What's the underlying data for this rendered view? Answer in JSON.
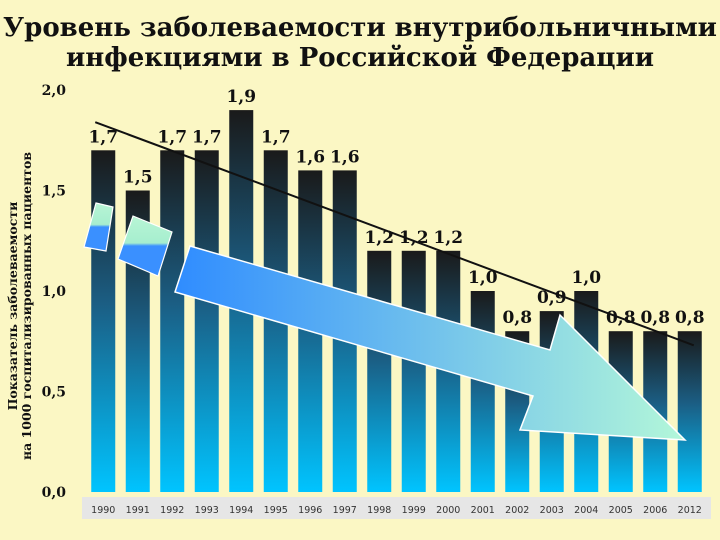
{
  "title_line1": "Уровень заболеваемости внутрибольничными",
  "title_line2": "инфекциями в Российской Федерации",
  "ylabel_line1": "Показатель заболеваемости",
  "ylabel_line2": "на 1000 госпитализированных пациентов",
  "colors": {
    "background": "#fbf7c4",
    "bar_top": "#1a1a1a",
    "bar_bottom": "#00bfff",
    "xaxis_band": "#e6e6e6",
    "arrow_start": "#3399ff",
    "arrow_end": "#a6f2cc",
    "trend_line": "#111111"
  },
  "chart_data": {
    "type": "bar",
    "categories": [
      "1990",
      "1991",
      "1992",
      "1993",
      "1994",
      "1995",
      "1996",
      "1997",
      "1998",
      "1999",
      "2000",
      "2001",
      "2002",
      "2003",
      "2004",
      "2005",
      "2006",
      "2012"
    ],
    "values": [
      1.7,
      1.5,
      1.7,
      1.7,
      1.9,
      1.7,
      1.6,
      1.6,
      1.2,
      1.2,
      1.2,
      1.0,
      0.8,
      0.9,
      1.0,
      0.8,
      0.8,
      0.8
    ],
    "data_labels": [
      "1,7",
      "1,5",
      "1,7",
      "1,7",
      "1,9",
      "1,7",
      "1,6",
      "1,6",
      "1,2",
      "1,2",
      "1,2",
      "1,0",
      "0,8",
      "0,9",
      "1,0",
      "0,8",
      "0,8",
      "0,8"
    ],
    "y_ticks": [
      "0,0",
      "0,5",
      "1,0",
      "1,5",
      "2,0"
    ],
    "ylim": [
      0,
      2.0
    ],
    "grid": false,
    "legend": "none",
    "trend_line": {
      "from": [
        1990,
        1.84
      ],
      "to": [
        2012,
        0.73
      ]
    },
    "title": "Уровень заболеваемости внутрибольничными инфекциями в Российской Федерации",
    "ylabel": "Показатель заболеваемости на 1000 госпитализированных пациентов"
  }
}
